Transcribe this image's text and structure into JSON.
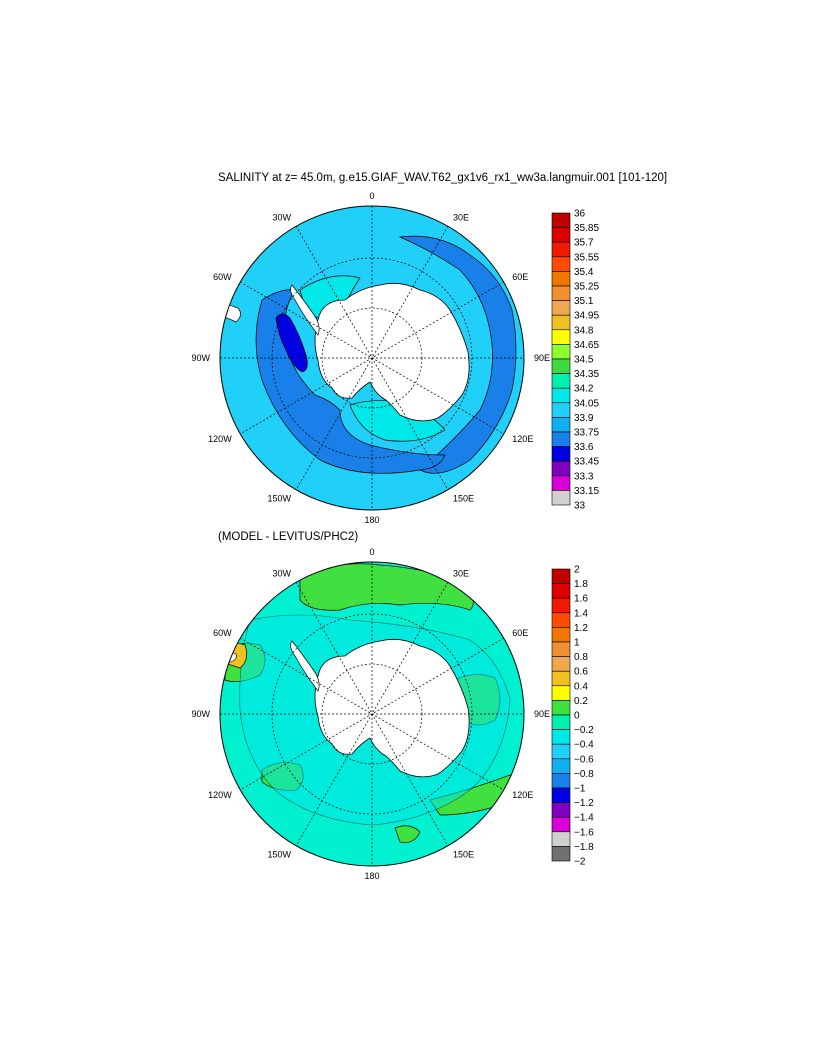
{
  "panels": [
    {
      "title": "SALINITY at z=  45.0m, g.e15.GIAF_WAV.T62_gx1v6_rx1_ww3a.langmuir.001 [101-120]",
      "lon_labels": [
        "0",
        "30E",
        "60E",
        "90E",
        "120E",
        "150E",
        "180",
        "150W",
        "120W",
        "90W",
        "60W",
        "30W"
      ],
      "colorbar": {
        "labels": [
          "36",
          "35.85",
          "35.7",
          "35.55",
          "35.4",
          "35.25",
          "35.1",
          "34.95",
          "34.8",
          "34.65",
          "34.5",
          "34.35",
          "34.2",
          "34.05",
          "33.9",
          "33.75",
          "33.6",
          "33.45",
          "33.3",
          "33.15",
          "33"
        ],
        "colors": [
          "#c00000",
          "#dc0000",
          "#f01a00",
          "#ff4a00",
          "#f07800",
          "#f09030",
          "#f0a850",
          "#f0c020",
          "#ffff00",
          "#90ff30",
          "#40d840",
          "#00f0b0",
          "#00e8e8",
          "#20d0f8",
          "#10b0f0",
          "#1880e8",
          "#0000e0",
          "#8000c0",
          "#d800d8",
          "#d0d0d0"
        ]
      }
    },
    {
      "title": "(MODEL - LEVITUS/PHC2)",
      "lon_labels": [
        "0",
        "30E",
        "60E",
        "90E",
        "120E",
        "150E",
        "180",
        "150W",
        "120W",
        "90W",
        "60W",
        "30W"
      ],
      "colorbar": {
        "labels": [
          "2",
          "1.8",
          "1.6",
          "1.4",
          "1.2",
          "1",
          "0.8",
          "0.6",
          "0.4",
          "0.2",
          "0",
          "−0.2",
          "−0.4",
          "−0.6",
          "−0.8",
          "−1",
          "−1.2",
          "−1.4",
          "−1.6",
          "−1.8",
          "−2"
        ],
        "colors": [
          "#c00000",
          "#dc0000",
          "#f01a00",
          "#ff4a00",
          "#f07800",
          "#f09030",
          "#f0a850",
          "#f0c020",
          "#ffff00",
          "#40e040",
          "#00f0b0",
          "#00e8e8",
          "#20d0f8",
          "#10b0f0",
          "#1880e8",
          "#0000e0",
          "#8000c0",
          "#d800d8",
          "#d0d0d0",
          "#707070"
        ]
      }
    }
  ],
  "colors": {
    "land": "#ffffff",
    "panel1_ocean_base": "#20d0f8",
    "panel1_low": "#1880e8",
    "panel1_lowest": "#0000e0",
    "panel1_mid": "#00e8e8",
    "panel2_ocean_base": "#00f0d0",
    "panel2_pos": "#40e040",
    "panel2_neg": "#00e8e8"
  }
}
